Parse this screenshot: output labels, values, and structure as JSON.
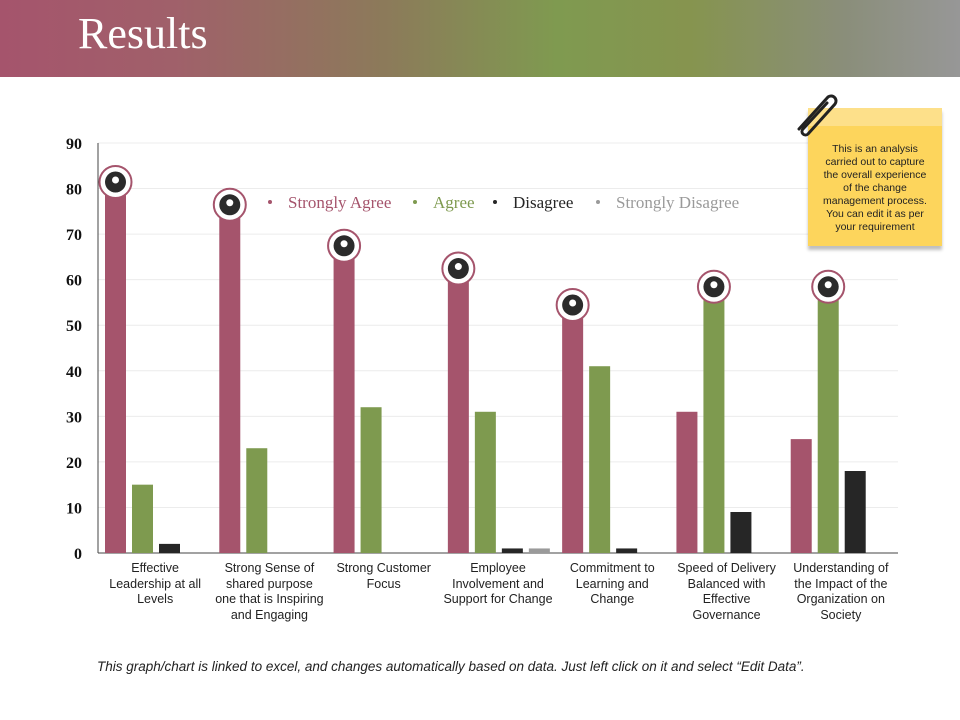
{
  "title": "Results",
  "note_text": "This is an analysis carried out to capture the overall experience of the change management process. You can edit it as per your requirement",
  "footer_text": "This graph/chart is linked to excel, and changes automatically based on data. Just left click on it and select “Edit Data”.",
  "colors": {
    "strongly_agree": "#a5546c",
    "agree": "#7e9a4f",
    "disagree": "#262626",
    "strongly_disagree": "#9a9a9a",
    "note": "#fdd55c"
  },
  "chart_data": {
    "type": "bar",
    "title": "",
    "xlabel": "",
    "ylabel": "",
    "ylim": [
      0,
      90
    ],
    "yticks": [
      "0",
      "10",
      "20",
      "30",
      "40",
      "50",
      "60",
      "70",
      "80",
      "90"
    ],
    "categories": [
      "Effective Leadership at all Levels",
      "Strong Sense of shared purpose one that is Inspiring and Engaging",
      "Strong Customer Focus",
      "Employee Involvement and Support for Change",
      "Commitment to Learning and Change",
      "Speed of Delivery Balanced with Effective Governance",
      "Understanding of the Impact of the Organization on Society"
    ],
    "series": [
      {
        "name": "Strongly Agree",
        "color": "#a5546c",
        "values": [
          81,
          76,
          67,
          62,
          54,
          31,
          25
        ]
      },
      {
        "name": "Agree",
        "color": "#7e9a4f",
        "values": [
          15,
          23,
          32,
          31,
          41,
          58,
          58
        ]
      },
      {
        "name": "Disagree",
        "color": "#262626",
        "values": [
          2,
          0,
          0,
          1,
          1,
          9,
          18
        ]
      },
      {
        "name": "Strongly Disagree",
        "color": "#9a9a9a",
        "values": [
          0,
          0,
          0,
          1,
          0,
          0,
          0
        ]
      }
    ],
    "category_icons": [
      "team-icon",
      "clipboard-checklist-icon",
      "magnifier-people-icon",
      "refresh-person-icon",
      "head-gear-icon",
      "document-edit-icon",
      "handshake-icon"
    ],
    "legend_position": "top-center",
    "grid": true
  }
}
